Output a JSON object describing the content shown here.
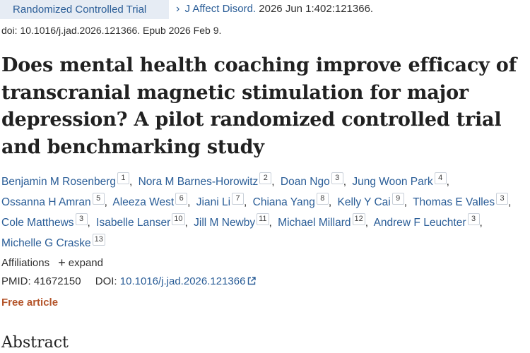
{
  "header": {
    "publication_type": "Randomized Controlled Trial",
    "chevron": "›",
    "journal": "J Affect Disord.",
    "citation": "2026 Jun 1:402:121366.",
    "doi_line": "doi: 10.1016/j.jad.2026.121366. Epub 2026 Feb 9."
  },
  "title": "Does mental health coaching improve efficacy of transcranial magnetic stimulation for major depression? A pilot randomized controlled trial and benchmarking study",
  "authors": [
    {
      "name": "Benjamin M Rosenberg",
      "aff": "1"
    },
    {
      "name": "Nora M Barnes-Horowitz",
      "aff": "2"
    },
    {
      "name": "Doan Ngo",
      "aff": "3"
    },
    {
      "name": "Jung Woon Park",
      "aff": "4"
    },
    {
      "name": "Ossanna H Amran",
      "aff": "5"
    },
    {
      "name": "Aleeza West",
      "aff": "6"
    },
    {
      "name": "Jiani Li",
      "aff": "7"
    },
    {
      "name": "Chiana Yang",
      "aff": "8"
    },
    {
      "name": "Kelly Y Cai",
      "aff": "9"
    },
    {
      "name": "Thomas E Valles",
      "aff": "3"
    },
    {
      "name": "Cole Matthews",
      "aff": "3"
    },
    {
      "name": "Isabelle Lanser",
      "aff": "10"
    },
    {
      "name": "Jill M Newby",
      "aff": "11"
    },
    {
      "name": "Michael Millard",
      "aff": "12"
    },
    {
      "name": "Andrew F Leuchter",
      "aff": "3"
    },
    {
      "name": "Michelle G Craske",
      "aff": "13"
    }
  ],
  "affiliations": {
    "label": "Affiliations",
    "expand_label": "expand"
  },
  "ids": {
    "pmid_label": "PMID:",
    "pmid": "41672150",
    "doi_label": "DOI:",
    "doi": "10.1016/j.jad.2026.121366"
  },
  "free_article": "Free article",
  "abstract_heading": "Abstract",
  "colors": {
    "link": "#2a5d97",
    "free": "#b4552b",
    "badge_bg": "#e6ecf4"
  }
}
